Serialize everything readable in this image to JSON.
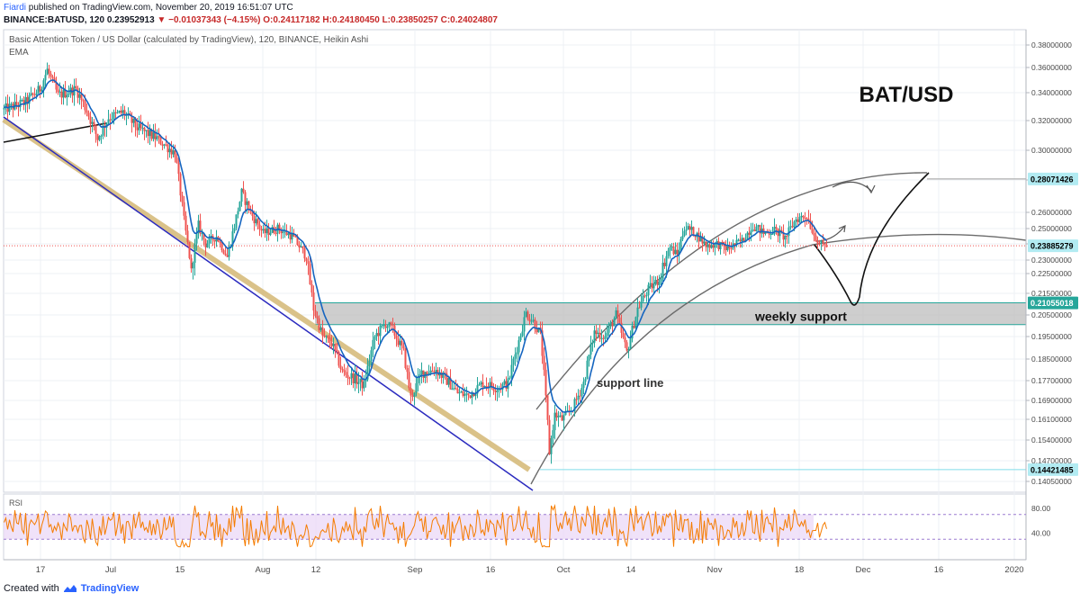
{
  "header": {
    "author": "Fiardi",
    "published": "published on TradingView.com, November 20, 2019 16:51:07 UTC",
    "symbol_line": "BINANCE:BATUSD, 120",
    "last": "0.23952913",
    "change": "▼ −0.01037343 (−4.15%)",
    "ohlc": "O:0.24117182 H:0.24180450 L:0.23850257 C:0.24024807"
  },
  "footer": {
    "created_with": "Created with",
    "brand": "TradingView"
  },
  "chart_data": [
    {
      "type": "candlestick",
      "title": "Basic Attention Token / US Dollar (calculated by TradingView), 120, BINANCE, Heikin Ashi",
      "indicator": "EMA",
      "annotation_title": "BAT/USD",
      "ylim": [
        0.133,
        0.384
      ],
      "y_ticks": [
        0.38,
        0.36,
        0.34,
        0.32,
        0.3,
        0.28,
        0.26,
        0.25,
        0.24,
        0.23,
        0.225,
        0.215,
        0.205,
        0.195,
        0.185,
        0.177,
        0.169,
        0.161,
        0.154,
        0.147,
        0.1405
      ],
      "y_tick_labels": [
        "0.38000000",
        "0.36000000",
        "0.34000000",
        "0.32000000",
        "0.30000000",
        "0.28000000",
        "0.26000000",
        "0.25000000",
        "0.24000000",
        "0.23000000",
        "0.22500000",
        "0.21500000",
        "0.20500000",
        "0.19500000",
        "0.18500000",
        "0.17700000",
        "0.16900000",
        "0.16100000",
        "0.15400000",
        "0.14700000",
        "0.14050000"
      ],
      "x_tick_labels": [
        "17",
        "Jul",
        "15",
        "Aug",
        "12",
        "Sep",
        "16",
        "Oct",
        "14",
        "Nov",
        "18",
        "Dec",
        "16",
        "2020"
      ],
      "price_labels": [
        {
          "value": 0.28071426,
          "text": "0.28071426",
          "color": "#b2ebf2",
          "text_color": "#000000"
        },
        {
          "value": 0.23885279,
          "text": "0.23885279",
          "color": "#b2ebf2",
          "text_color": "#000000"
        },
        {
          "value": 0.21055018,
          "text": "0.21055018",
          "color": "#26a69a",
          "text_color": "#ffffff"
        },
        {
          "value": 0.14421485,
          "text": "0.14421485",
          "color": "#b2ebf2",
          "text_color": "#000000"
        }
      ],
      "current_price": 0.23885279,
      "support_zone": {
        "label": "weekly support",
        "from": 0.2005,
        "to": 0.2106
      },
      "support_line_label": "support line",
      "anchors": [
        [
          0,
          0.328
        ],
        [
          12,
          0.333
        ],
        [
          20,
          0.343
        ],
        [
          24,
          0.358
        ],
        [
          30,
          0.338
        ],
        [
          40,
          0.343
        ],
        [
          46,
          0.327
        ],
        [
          52,
          0.308
        ],
        [
          58,
          0.322
        ],
        [
          66,
          0.326
        ],
        [
          74,
          0.315
        ],
        [
          85,
          0.308
        ],
        [
          95,
          0.298
        ],
        [
          100,
          0.255
        ],
        [
          104,
          0.225
        ],
        [
          108,
          0.252
        ],
        [
          112,
          0.24
        ],
        [
          118,
          0.245
        ],
        [
          124,
          0.232
        ],
        [
          132,
          0.272
        ],
        [
          138,
          0.258
        ],
        [
          144,
          0.247
        ],
        [
          152,
          0.25
        ],
        [
          160,
          0.245
        ],
        [
          168,
          0.232
        ],
        [
          172,
          0.208
        ],
        [
          177,
          0.195
        ],
        [
          182,
          0.192
        ],
        [
          188,
          0.18
        ],
        [
          194,
          0.178
        ],
        [
          200,
          0.175
        ],
        [
          206,
          0.195
        ],
        [
          212,
          0.201
        ],
        [
          216,
          0.198
        ],
        [
          222,
          0.188
        ],
        [
          226,
          0.17
        ],
        [
          232,
          0.18
        ],
        [
          240,
          0.181
        ],
        [
          246,
          0.177
        ],
        [
          252,
          0.172
        ],
        [
          258,
          0.171
        ],
        [
          266,
          0.176
        ],
        [
          274,
          0.174
        ],
        [
          280,
          0.176
        ],
        [
          286,
          0.193
        ],
        [
          290,
          0.206
        ],
        [
          294,
          0.202
        ],
        [
          298,
          0.196
        ],
        [
          300,
          0.179
        ],
        [
          303,
          0.15
        ],
        [
          306,
          0.163
        ],
        [
          310,
          0.161
        ],
        [
          316,
          0.166
        ],
        [
          322,
          0.176
        ],
        [
          328,
          0.197
        ],
        [
          334,
          0.195
        ],
        [
          340,
          0.205
        ],
        [
          346,
          0.188
        ],
        [
          352,
          0.208
        ],
        [
          358,
          0.217
        ],
        [
          364,
          0.222
        ],
        [
          370,
          0.238
        ],
        [
          374,
          0.233
        ],
        [
          378,
          0.251
        ],
        [
          384,
          0.247
        ],
        [
          390,
          0.239
        ],
        [
          396,
          0.24
        ],
        [
          402,
          0.237
        ],
        [
          410,
          0.242
        ],
        [
          416,
          0.252
        ],
        [
          422,
          0.247
        ],
        [
          428,
          0.249
        ],
        [
          434,
          0.244
        ],
        [
          440,
          0.256
        ],
        [
          446,
          0.258
        ],
        [
          450,
          0.246
        ],
        [
          454,
          0.239
        ],
        [
          457,
          0.2395
        ]
      ],
      "ema_series": "EMA",
      "rsi": {
        "label": "RSI",
        "upper": 70,
        "lower": 30,
        "ticks": [
          80,
          40
        ],
        "tick_labels": [
          "80.00",
          "40.00"
        ]
      }
    }
  ]
}
